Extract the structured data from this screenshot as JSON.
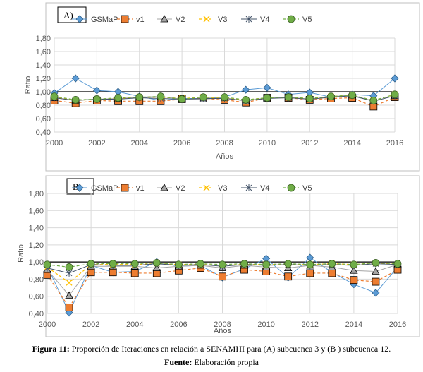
{
  "caption": {
    "figure_label": "Figura 11:",
    "figure_text": " Proporción de Iteraciones en relación a SENAMHI para (A) subcuenca 3 y (B ) subcuenca 12.",
    "source_label": "Fuente:",
    "source_text": " Elaboración propia"
  },
  "colors": {
    "GSMaP": "#5b9bd5",
    "v1": "#ed7d31",
    "V2": "#a5a5a5",
    "V3": "#ffc000",
    "V4": "#44546a",
    "V5": "#70ad47"
  },
  "chart_data": [
    {
      "type": "line",
      "panel_label": "A)",
      "xlabel": "Años",
      "ylabel": "Ratio",
      "ylim": [
        0.4,
        1.8
      ],
      "yticks": [
        "0,40",
        "0,60",
        "0,80",
        "1,00",
        "1,20",
        "1,40",
        "1,60",
        "1,80"
      ],
      "xticks": [
        "2000",
        "2002",
        "2004",
        "2006",
        "2008",
        "2010",
        "2012",
        "2014",
        "2016"
      ],
      "grid": true,
      "legend": "top",
      "reference_line": 1.0,
      "x": [
        2000,
        2001,
        2002,
        2003,
        2004,
        2005,
        2006,
        2007,
        2008,
        2009,
        2010,
        2011,
        2012,
        2013,
        2014,
        2015,
        2016
      ],
      "series": [
        {
          "name": "GSMaP",
          "values": [
            0.98,
            1.2,
            1.02,
            1.0,
            0.93,
            0.87,
            0.9,
            0.9,
            0.92,
            1.03,
            1.06,
            0.96,
            0.99,
            0.92,
            0.96,
            0.94,
            1.2
          ]
        },
        {
          "name": "v1",
          "values": [
            0.87,
            0.83,
            0.87,
            0.86,
            0.86,
            0.86,
            0.89,
            0.9,
            0.88,
            0.84,
            0.91,
            0.91,
            0.88,
            0.9,
            0.91,
            0.78,
            0.92
          ]
        },
        {
          "name": "V2",
          "values": [
            0.91,
            0.87,
            0.89,
            0.9,
            0.92,
            0.93,
            0.89,
            0.89,
            0.91,
            0.86,
            0.91,
            0.92,
            0.89,
            0.92,
            0.95,
            0.86,
            0.94
          ]
        },
        {
          "name": "V3",
          "values": [
            0.92,
            0.87,
            0.89,
            0.9,
            0.92,
            0.92,
            0.9,
            0.92,
            0.9,
            0.88,
            0.91,
            0.92,
            0.9,
            0.93,
            0.95,
            0.87,
            0.96
          ]
        },
        {
          "name": "V4",
          "values": [
            0.91,
            0.87,
            0.89,
            0.89,
            0.91,
            0.9,
            0.89,
            0.9,
            0.9,
            0.87,
            0.9,
            0.91,
            0.89,
            0.92,
            0.94,
            0.86,
            0.94
          ]
        },
        {
          "name": "V5",
          "values": [
            0.93,
            0.88,
            0.89,
            0.91,
            0.92,
            0.93,
            0.89,
            0.92,
            0.92,
            0.88,
            0.91,
            0.92,
            0.9,
            0.93,
            0.95,
            0.87,
            0.96
          ]
        }
      ]
    },
    {
      "type": "line",
      "panel_label": "B)",
      "xlabel": "Años",
      "ylabel": "Ratio",
      "ylim": [
        0.4,
        1.8
      ],
      "yticks": [
        "0,40",
        "0,60",
        "0,80",
        "1,00",
        "1,20",
        "1,40",
        "1,60",
        "1,80"
      ],
      "xticks": [
        "2000",
        "2002",
        "2004",
        "2006",
        "2008",
        "2010",
        "2012",
        "2014",
        "2016"
      ],
      "grid": true,
      "legend": "top",
      "reference_line": 1.0,
      "x": [
        2000,
        2001,
        2002,
        2003,
        2004,
        2005,
        2006,
        2007,
        2008,
        2009,
        2010,
        2011,
        2012,
        2013,
        2014,
        2015,
        2016
      ],
      "series": [
        {
          "name": "GSMaP",
          "values": [
            0.95,
            0.41,
            0.96,
            0.88,
            0.89,
            1.0,
            0.95,
            0.96,
            0.82,
            0.92,
            1.04,
            0.82,
            1.05,
            0.88,
            0.74,
            0.64,
            0.94
          ]
        },
        {
          "name": "v1",
          "values": [
            0.85,
            0.47,
            0.88,
            0.88,
            0.87,
            0.87,
            0.9,
            0.93,
            0.83,
            0.91,
            0.89,
            0.83,
            0.87,
            0.87,
            0.79,
            0.77,
            0.91
          ]
        },
        {
          "name": "V2",
          "values": [
            0.91,
            0.61,
            0.95,
            0.95,
            0.95,
            0.93,
            0.95,
            0.96,
            0.93,
            0.96,
            0.94,
            0.93,
            0.96,
            0.94,
            0.9,
            0.89,
            0.97
          ]
        },
        {
          "name": "V3",
          "values": [
            0.94,
            0.76,
            0.97,
            0.97,
            0.97,
            0.98,
            0.97,
            0.97,
            0.96,
            0.97,
            0.97,
            0.97,
            0.97,
            0.98,
            0.97,
            0.99,
            0.97
          ]
        },
        {
          "name": "V4",
          "values": [
            0.93,
            0.87,
            0.97,
            0.96,
            0.96,
            0.98,
            0.96,
            0.97,
            0.95,
            0.97,
            0.96,
            0.97,
            0.96,
            0.97,
            0.96,
            0.98,
            0.97
          ]
        },
        {
          "name": "V5",
          "values": [
            0.97,
            0.94,
            0.98,
            0.98,
            0.98,
            0.99,
            0.97,
            0.98,
            0.97,
            0.98,
            0.97,
            0.98,
            0.97,
            0.98,
            0.97,
            0.99,
            0.98
          ]
        }
      ]
    }
  ]
}
